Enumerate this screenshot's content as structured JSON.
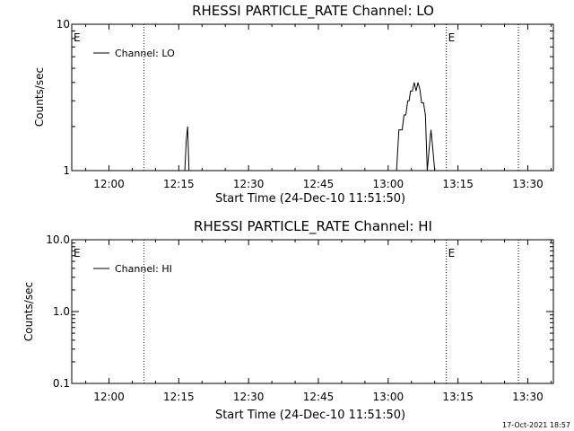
{
  "footer": {
    "timestamp": "17-Oct-2021 18:57"
  },
  "chart_data": [
    {
      "type": "line",
      "title": "RHESSI PARTICLE_RATE Channel: LO",
      "xlabel": "Start Time (24-Dec-10 11:51:50)",
      "ylabel": "Counts/sec",
      "y_scale": "log",
      "ylim": [
        1,
        10
      ],
      "y_ticks": [
        {
          "value": 1,
          "label": "1"
        },
        {
          "value": 10,
          "label": "10"
        }
      ],
      "xlim_minutes": [
        -8.0,
        36.0
      ],
      "x_ticks": [
        {
          "value": 0,
          "label": "12:00"
        },
        {
          "value": 15,
          "label": "12:15"
        },
        {
          "value": 30,
          "label": "12:30"
        },
        {
          "value": 45,
          "label": "12:45"
        },
        {
          "value": 60,
          "label": "13:00"
        },
        {
          "value": 75,
          "label": "13:15"
        },
        {
          "value": 90,
          "label": "13:30"
        }
      ],
      "vlines_minutes": [
        7.5,
        72.5,
        88.0
      ],
      "eclipse_markers": [
        {
          "label": "E",
          "x": -8.0
        },
        {
          "label": "E",
          "x": 72.5
        }
      ],
      "legend": {
        "label": "Channel: LO",
        "position": "top-left"
      },
      "series": [
        {
          "name": "Channel: LO",
          "x": [
            16.3,
            16.6,
            16.9,
            17.2,
            61.8,
            62.3,
            63.0,
            63.4,
            63.8,
            64.2,
            64.5,
            64.8,
            65.2,
            65.6,
            66.0,
            66.4,
            66.8,
            67.2,
            67.6,
            68.0,
            68.4,
            68.8,
            69.2,
            69.6,
            70.0,
            70.3
          ],
          "y": [
            1.0,
            1.6,
            2.0,
            1.0,
            1.0,
            1.9,
            1.9,
            2.4,
            2.4,
            3.0,
            3.0,
            3.5,
            3.5,
            4.0,
            3.5,
            4.0,
            3.6,
            2.9,
            2.9,
            2.4,
            1.0,
            1.4,
            1.9,
            1.4,
            1.0,
            1.0
          ]
        }
      ]
    },
    {
      "type": "line",
      "title": "RHESSI PARTICLE_RATE Channel: HI",
      "xlabel": "Start Time (24-Dec-10 11:51:50)",
      "ylabel": "Counts/sec",
      "y_scale": "log",
      "ylim": [
        0.1,
        10
      ],
      "y_ticks": [
        {
          "value": 0.1,
          "label": "0.1"
        },
        {
          "value": 1,
          "label": "1.0"
        },
        {
          "value": 10,
          "label": "10.0"
        }
      ],
      "xlim_minutes": [
        -8.0,
        36.0
      ],
      "x_ticks": [
        {
          "value": 0,
          "label": "12:00"
        },
        {
          "value": 15,
          "label": "12:15"
        },
        {
          "value": 30,
          "label": "12:30"
        },
        {
          "value": 45,
          "label": "12:45"
        },
        {
          "value": 60,
          "label": "13:00"
        },
        {
          "value": 75,
          "label": "13:15"
        },
        {
          "value": 90,
          "label": "13:30"
        }
      ],
      "vlines_minutes": [
        7.5,
        72.5,
        88.0
      ],
      "eclipse_markers": [
        {
          "label": "E",
          "x": -8.0
        },
        {
          "label": "E",
          "x": 72.5
        }
      ],
      "legend": {
        "label": "Channel: HI",
        "position": "top-left"
      },
      "series": [
        {
          "name": "Channel: HI",
          "x": [],
          "y": []
        }
      ]
    }
  ]
}
